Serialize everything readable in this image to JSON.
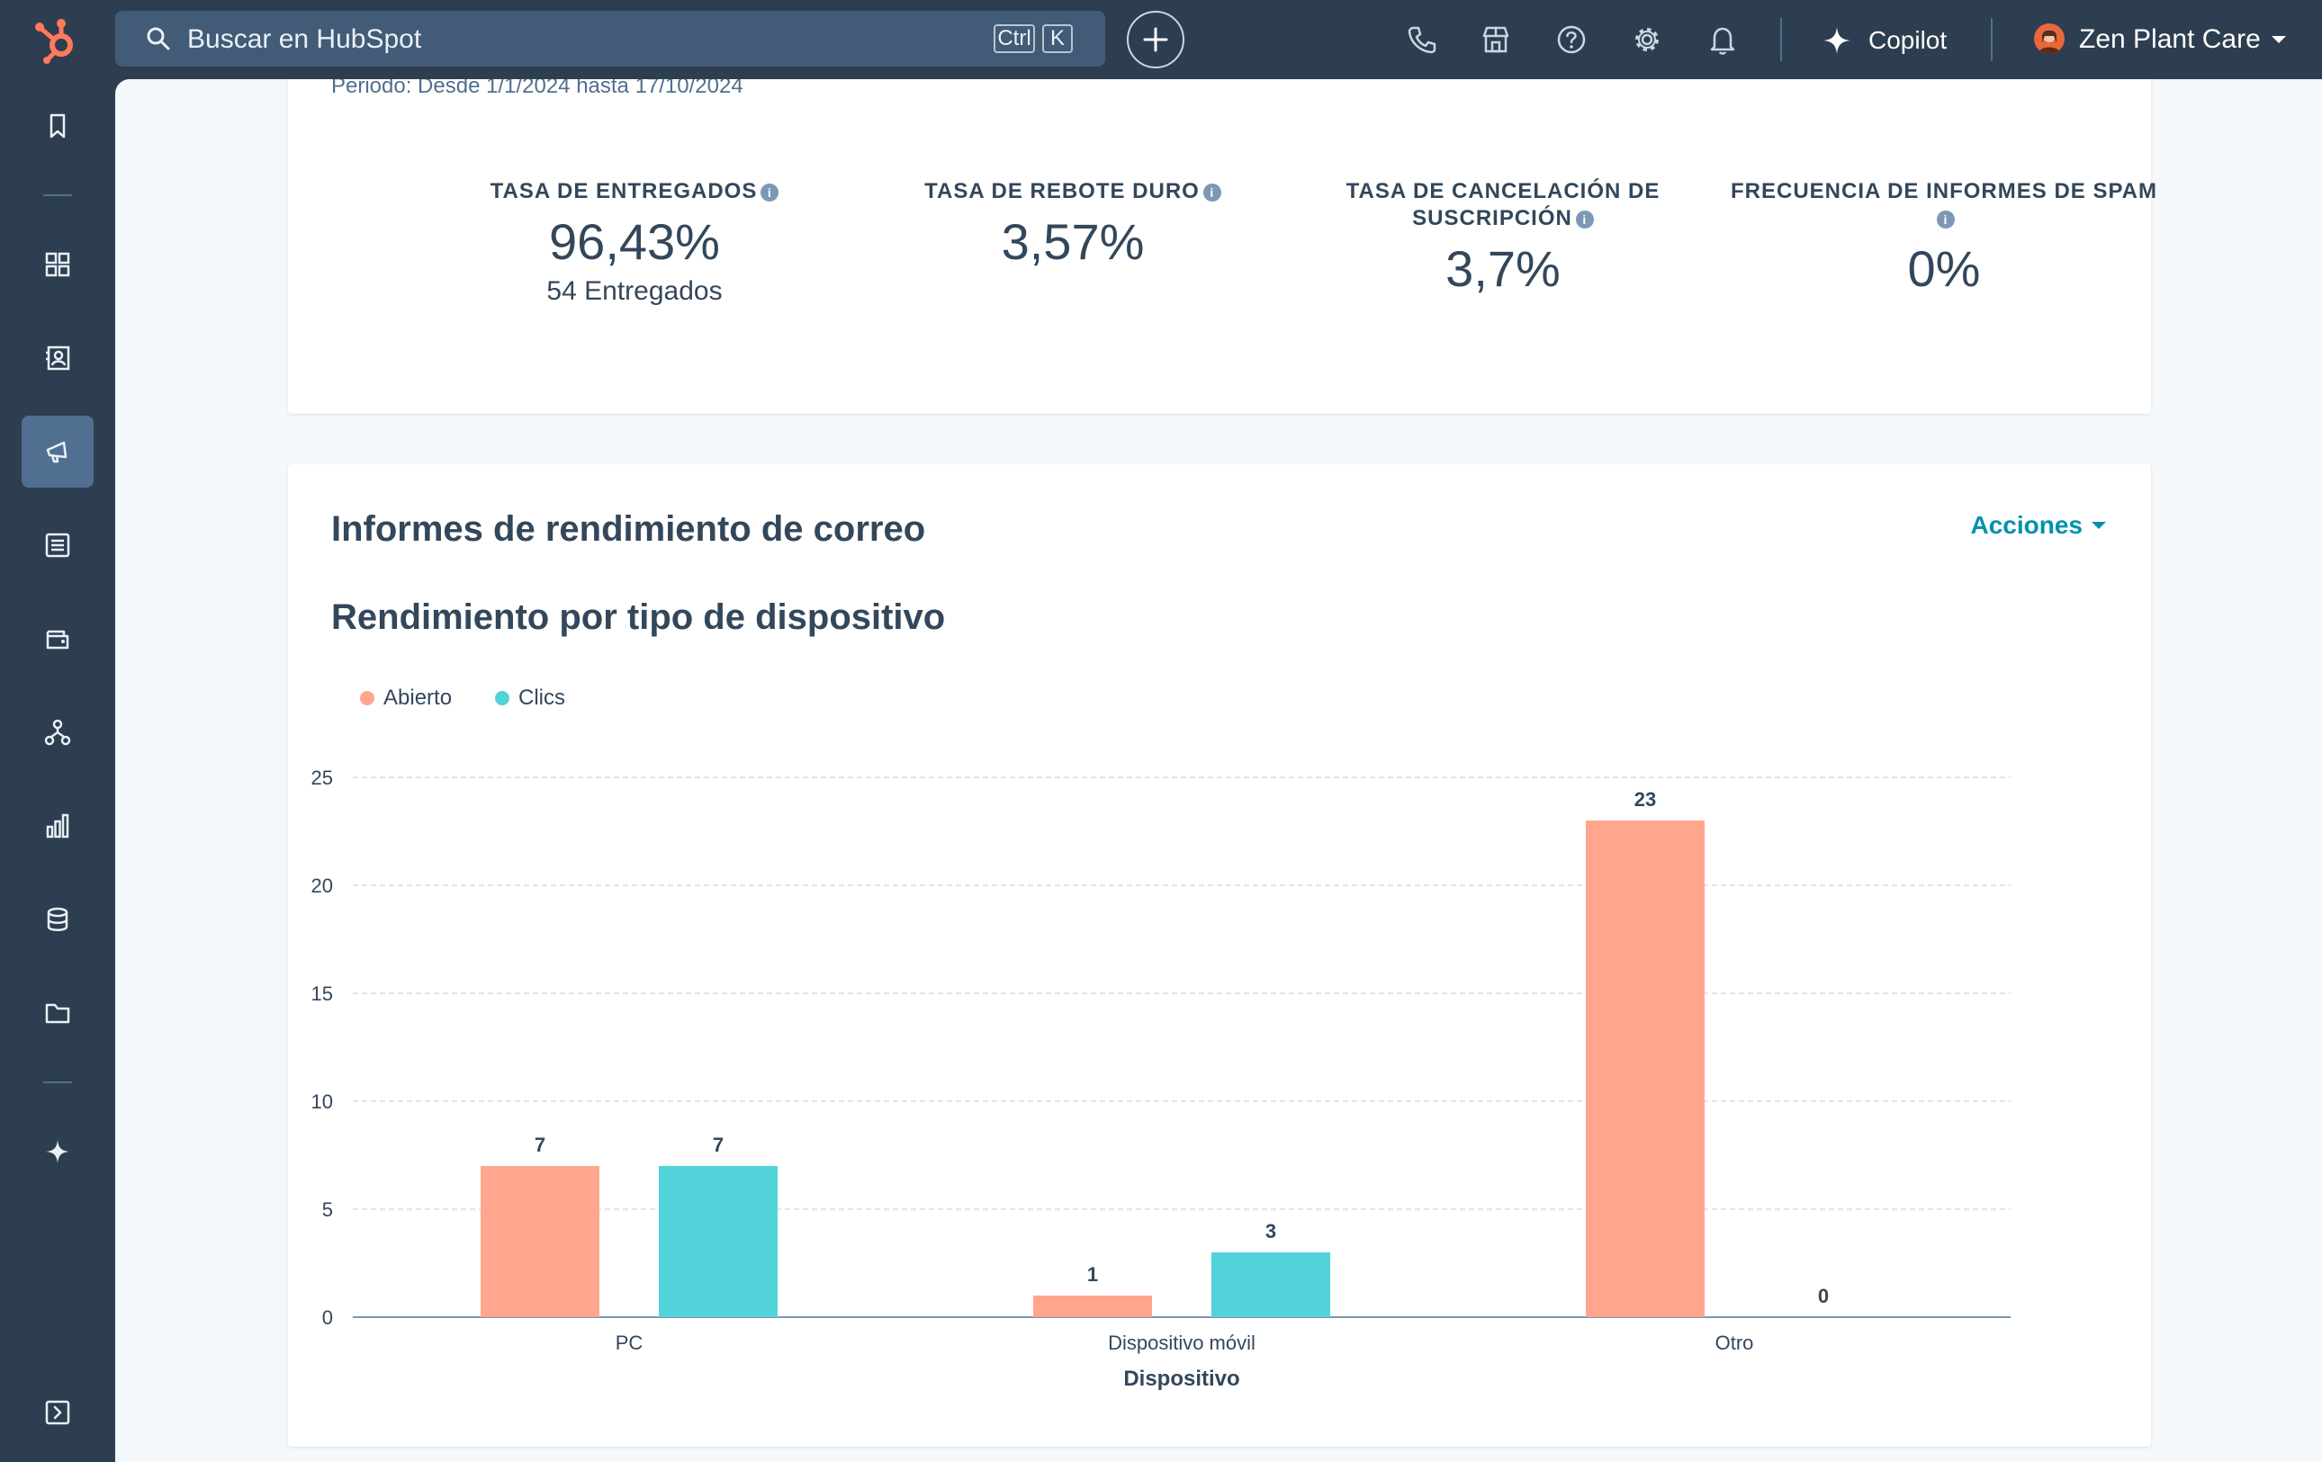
{
  "search": {
    "placeholder": "Buscar en HubSpot",
    "kbd_ctrl": "Ctrl",
    "kbd_k": "K"
  },
  "topbar": {
    "copilot_label": "Copilot",
    "account_name": "Zen Plant Care"
  },
  "icons": {
    "logo": "hubspot-sprocket-icon",
    "search": "search-icon",
    "add": "plus-icon",
    "phone": "phone-icon",
    "marketplace": "store-icon",
    "help": "help-icon",
    "settings": "gear-icon",
    "notifications": "bell-icon",
    "copilot": "sparkle-icon",
    "account_caret": "caret-down-icon"
  },
  "sidebar": [
    {
      "name": "bookmarks",
      "icon": "bookmark-icon"
    },
    {
      "name": "workspaces",
      "icon": "grid-icon"
    },
    {
      "name": "crm",
      "icon": "contacts-icon"
    },
    {
      "name": "marketing",
      "icon": "megaphone-icon",
      "active": true
    },
    {
      "name": "content",
      "icon": "content-icon"
    },
    {
      "name": "commerce",
      "icon": "wallet-icon"
    },
    {
      "name": "automation",
      "icon": "workflow-icon"
    },
    {
      "name": "reporting",
      "icon": "bar-chart-icon"
    },
    {
      "name": "data",
      "icon": "database-icon"
    },
    {
      "name": "library",
      "icon": "folder-icon"
    },
    {
      "name": "breeze",
      "icon": "sparkle-icon"
    },
    {
      "name": "expand",
      "icon": "expand-icon"
    }
  ],
  "period": "Periodo: Desde 1/1/2024 hasta 17/10/2024",
  "metrics": [
    {
      "label": "TASA DE ENTREGADOS",
      "value": "96,43%",
      "sub": "54 Entregados"
    },
    {
      "label": "TASA DE REBOTE DURO",
      "value": "3,57%"
    },
    {
      "label": "TASA DE CANCELACIÓN DE SUSCRIPCIÓN",
      "value": "3,7%"
    },
    {
      "label": "FRECUENCIA DE INFORMES DE SPAM",
      "value": "0%"
    }
  ],
  "section": {
    "title": "Informes de rendimiento de correo",
    "actions_label": "Acciones"
  },
  "chart_data": {
    "type": "bar",
    "title": "Rendimiento por tipo de dispositivo",
    "xlabel": "Dispositivo",
    "ylabel": "",
    "categories": [
      "PC",
      "Dispositivo móvil",
      "Otro"
    ],
    "series": [
      {
        "name": "Abierto",
        "values": [
          7,
          1,
          23
        ],
        "color": "#ffa68d"
      },
      {
        "name": "Clics",
        "values": [
          7,
          3,
          0
        ],
        "color": "#51d3d9"
      }
    ],
    "ylim": [
      0,
      25
    ],
    "yticks": [
      0,
      5,
      10,
      15,
      20,
      25
    ],
    "grid": true,
    "legend": "top-left",
    "data_labels": true
  }
}
